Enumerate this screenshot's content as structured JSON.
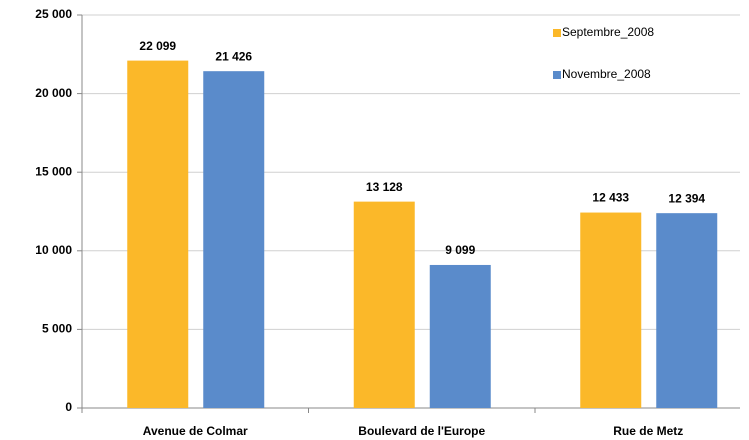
{
  "chart_data": {
    "type": "bar",
    "categories": [
      "Avenue de Colmar",
      "Boulevard de l'Europe",
      "Rue de Metz"
    ],
    "series": [
      {
        "name": "Septembre_2008",
        "color": "#fbb829",
        "values": [
          22099,
          13128,
          12433
        ],
        "value_labels": [
          "22 099",
          "13 128",
          "12 433"
        ]
      },
      {
        "name": "Novembre_2008",
        "color": "#5a8bcb",
        "values": [
          21426,
          9099,
          12394
        ],
        "value_labels": [
          "21 426",
          "9 099",
          "12 394"
        ]
      }
    ],
    "ylim": [
      0,
      25000
    ],
    "yticks": [
      0,
      {
        "value": 5000,
        "label": "5 000"
      },
      {
        "value": 10000,
        "label": "10 000"
      },
      {
        "value": 15000,
        "label": "15 000"
      },
      {
        "value": 20000,
        "label": "20 000"
      },
      {
        "value": 25000,
        "label": "25 000"
      }
    ],
    "grid": true,
    "legend": "top-right"
  }
}
